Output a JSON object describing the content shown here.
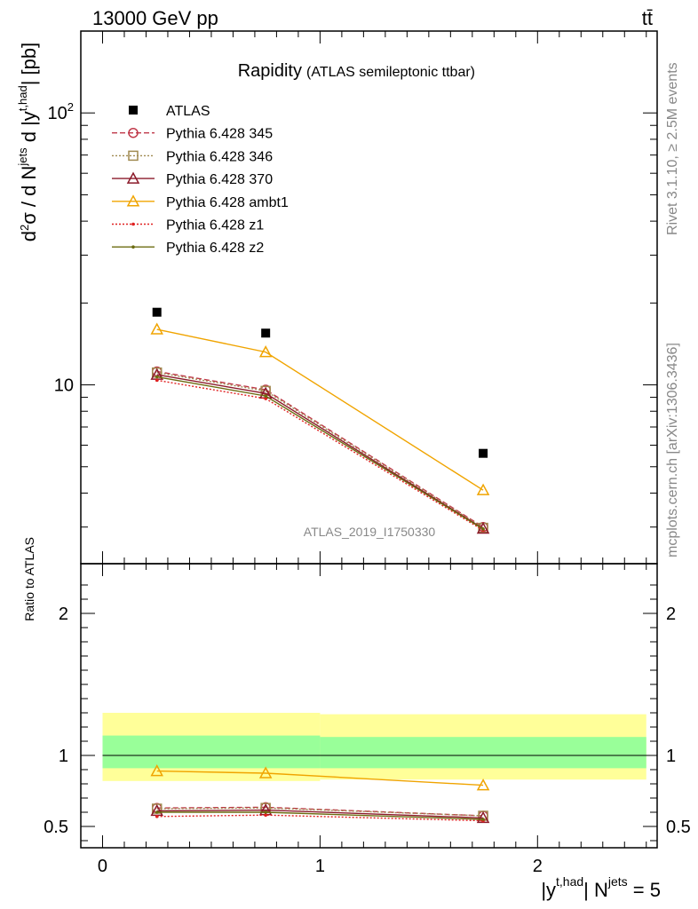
{
  "header": {
    "energy": "13000 GeV pp",
    "process": "tt̄"
  },
  "side_labels": {
    "rivet": "Rivet 3.1.10, ≥ 2.5M events",
    "mcplots": "mcplots.cern.ch [arXiv:1306.3436]"
  },
  "chart_data": [
    {
      "type": "scatter",
      "title": "Rapidity",
      "subtitle": "(ATLAS semileptonic ttbar)",
      "analysis_id": "ATLAS_2019_I1750330",
      "xlabel": "|y^{t,had}| N^{jets} = 5",
      "ylabel": "d²σ / d N^{jets} d |y^{t,had}| [pb]",
      "ylog": true,
      "xlim": [
        -0.1,
        2.55
      ],
      "ylim": [
        2.2,
        200
      ],
      "ytick_labels": [
        "10",
        "10²"
      ],
      "x": [
        0.25,
        0.75,
        1.75
      ],
      "legend_position": "top-left",
      "series": [
        {
          "name": "ATLAS",
          "color": "#000000",
          "marker": "square",
          "values": [
            18.5,
            15.5,
            5.6
          ]
        },
        {
          "name": "Pythia 6.428 345",
          "color": "#c0394a",
          "marker": "circle-open",
          "dash": "6,3",
          "values": [
            11.2,
            9.6,
            3.0
          ]
        },
        {
          "name": "Pythia 6.428 346",
          "color": "#a08a50",
          "marker": "square-open",
          "dash": "2,2",
          "values": [
            11.1,
            9.5,
            2.98
          ]
        },
        {
          "name": "Pythia 6.428 370",
          "color": "#8b1a2a",
          "marker": "triangle-open",
          "values": [
            10.9,
            9.3,
            2.96
          ]
        },
        {
          "name": "Pythia 6.428 ambt1",
          "color": "#f0a400",
          "marker": "triangle-open",
          "values": [
            16.0,
            13.2,
            4.1
          ]
        },
        {
          "name": "Pythia 6.428 z1",
          "color": "#e02020",
          "marker": "dot",
          "dash": "2,2",
          "values": [
            10.4,
            8.9,
            2.92
          ]
        },
        {
          "name": "Pythia 6.428 z2",
          "color": "#6b6b10",
          "marker": "dot",
          "values": [
            10.7,
            9.1,
            2.95
          ]
        }
      ]
    },
    {
      "type": "line",
      "ylabel": "Ratio to ATLAS",
      "xlim": [
        -0.1,
        2.55
      ],
      "ylim": [
        0.35,
        2.35
      ],
      "ytick_labels": [
        "0.5",
        "1",
        "2"
      ],
      "xtick_labels": [
        "0",
        "1",
        "2"
      ],
      "x": [
        0.25,
        0.75,
        1.75
      ],
      "reference_line": 1,
      "bands": [
        {
          "x_from": 0,
          "x_to": 1,
          "outer": [
            0.82,
            1.3
          ],
          "inner": [
            0.91,
            1.14
          ]
        },
        {
          "x_from": 1,
          "x_to": 2.5,
          "outer": [
            0.83,
            1.29
          ],
          "inner": [
            0.91,
            1.13
          ]
        }
      ],
      "series": [
        {
          "name": "Pythia 6.428 345",
          "color": "#c0394a",
          "dash": "6,3",
          "values": [
            0.63,
            0.635,
            0.575
          ]
        },
        {
          "name": "Pythia 6.428 346",
          "color": "#a08a50",
          "dash": "2,2",
          "values": [
            0.625,
            0.63,
            0.575
          ]
        },
        {
          "name": "Pythia 6.428 370",
          "color": "#8b1a2a",
          "values": [
            0.61,
            0.615,
            0.56
          ]
        },
        {
          "name": "Pythia 6.428 ambt1",
          "color": "#f0a400",
          "values": [
            0.89,
            0.875,
            0.79
          ]
        },
        {
          "name": "Pythia 6.428 z1",
          "color": "#e02020",
          "dash": "2,2",
          "values": [
            0.57,
            0.58,
            0.54
          ]
        },
        {
          "name": "Pythia 6.428 z2",
          "color": "#6b6b10",
          "values": [
            0.6,
            0.6,
            0.55
          ]
        }
      ]
    }
  ]
}
